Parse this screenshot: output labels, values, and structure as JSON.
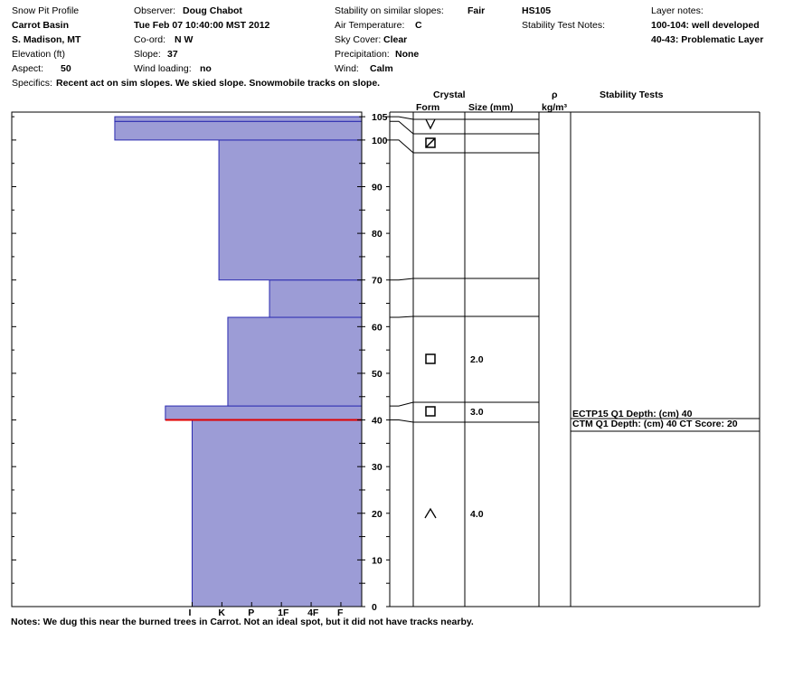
{
  "header": {
    "title": "Snow Pit Profile",
    "location": "Carrot Basin",
    "region": "S. Madison, MT",
    "elevation_label": "Elevation (ft)",
    "aspect_label": "Aspect:",
    "aspect_value": "50",
    "observer_label": "Observer:",
    "observer_value": "Doug Chabot",
    "date": "Tue Feb 07 10:40:00 MST 2012",
    "coord_label": "Co-ord:",
    "coord_value": "N  W",
    "slope_label": "Slope:",
    "slope_value": "37",
    "wind_loading_label": "Wind loading:",
    "wind_loading_value": "no",
    "stability_label": "Stability on similar slopes:",
    "stability_value": "Fair",
    "air_temp_label": "Air Temperature:",
    "air_temp_value": "C",
    "sky_label": "Sky Cover:",
    "sky_value": "Clear",
    "precip_label": "Precipitation:",
    "precip_value": "None",
    "wind_label": "Wind:",
    "wind_value": "Calm",
    "hs": "HS105",
    "stability_notes_label": "Stability Test Notes:",
    "layer_notes_label": "Layer notes:",
    "layer_note_1": "100-104: well developed",
    "layer_note_2": "40-43: Problematic Layer",
    "specifics_label": "Specifics:",
    "specifics_value": "Recent act on sim slopes. We skied slope. Snowmobile tracks on slope."
  },
  "columns": {
    "crystal": "Crystal",
    "form": "Form",
    "size": "Size (mm)",
    "rho": "ρ",
    "density_unit": "kg/m³",
    "stability_tests": "Stability Tests"
  },
  "notes": "Notes:  We dug this near the burned trees in Carrot.  Not an ideal spot, but it did not have tracks nearby.",
  "chart_data": {
    "type": "snow-pit-profile",
    "height_axis": {
      "min": 0,
      "max": 105,
      "ticks": [
        0,
        10,
        20,
        30,
        40,
        50,
        60,
        70,
        80,
        90,
        100,
        105
      ],
      "unit": "cm"
    },
    "hardness_axis": {
      "labels": [
        "I",
        "K",
        "P",
        "1F",
        "4F",
        "F"
      ],
      "direction": "right-to-left"
    },
    "hardness_layers": [
      {
        "bottom": 0,
        "top": 40,
        "hardness_index": 5.7
      },
      {
        "bottom": 40,
        "top": 43,
        "hardness_index": 6.6
      },
      {
        "bottom": 43,
        "top": 62,
        "hardness_index": 4.5
      },
      {
        "bottom": 62,
        "top": 70,
        "hardness_index": 3.1
      },
      {
        "bottom": 70,
        "top": 100,
        "hardness_index": 4.8
      },
      {
        "bottom": 100,
        "top": 104,
        "hardness_index": 8.3
      },
      {
        "bottom": 104,
        "top": 105,
        "hardness_index": 8.3
      }
    ],
    "weak_layer_height": 40,
    "layer_boundaries": [
      {
        "height": 105,
        "table_y": 132
      },
      {
        "height": 104,
        "table_y": 148
      },
      {
        "height": 100,
        "table_y": 169
      },
      {
        "height": 70,
        "table_y": 308
      },
      {
        "height": 62,
        "table_y": 350
      },
      {
        "height": 43,
        "table_y": 445
      },
      {
        "height": 40,
        "table_y": 467
      }
    ],
    "crystals": [
      {
        "symbol": "new-snow",
        "height": 102.5,
        "size": ""
      },
      {
        "symbol": "rounded",
        "height": 99,
        "size": ""
      },
      {
        "symbol": "faceted",
        "height": 53,
        "size": "2.0"
      },
      {
        "symbol": "faceted",
        "height": 42,
        "size": "3.0"
      },
      {
        "symbol": "depth-hoar",
        "height": 20,
        "size": "4.0"
      }
    ],
    "stability_tests": [
      {
        "text": "ECTP15 Q1 Depth: (cm) 40"
      },
      {
        "text": "CTM Q1 Depth: (cm) 40 CT Score: 20"
      }
    ]
  }
}
